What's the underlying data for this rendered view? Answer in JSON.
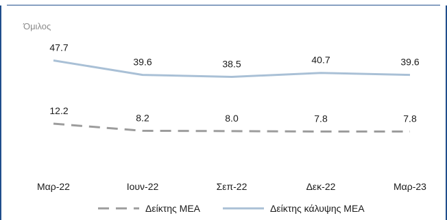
{
  "header": {
    "group_label": "Όμιλος"
  },
  "colors": {
    "solid_series": "#a9c0d6",
    "dashed_series": "#9c9c9c",
    "border": "#1f4e8c"
  },
  "chart_data": {
    "type": "line",
    "categories": [
      "Μαρ-22",
      "Ιουν-22",
      "Σεπ-22",
      "Δεκ-22",
      "Μαρ-23"
    ],
    "series": [
      {
        "name": "Δείκτης κάλυψης ΜΕΑ",
        "values": [
          47.7,
          39.6,
          38.5,
          40.7,
          39.6
        ],
        "labels": [
          "47.7",
          "39.6",
          "38.5",
          "40.7",
          "39.6"
        ],
        "style": "solid"
      },
      {
        "name": "Δείκτης ΜΕΑ",
        "values": [
          12.2,
          8.2,
          8.0,
          7.8,
          7.8
        ],
        "labels": [
          "12.2",
          "8.2",
          "8.0",
          "7.8",
          "7.8"
        ],
        "style": "dashed"
      }
    ],
    "legend_order": [
      "Δείκτης ΜΕΑ",
      "Δείκτης κάλυψης ΜΕΑ"
    ],
    "legend_position": "bottom",
    "grid": false
  }
}
